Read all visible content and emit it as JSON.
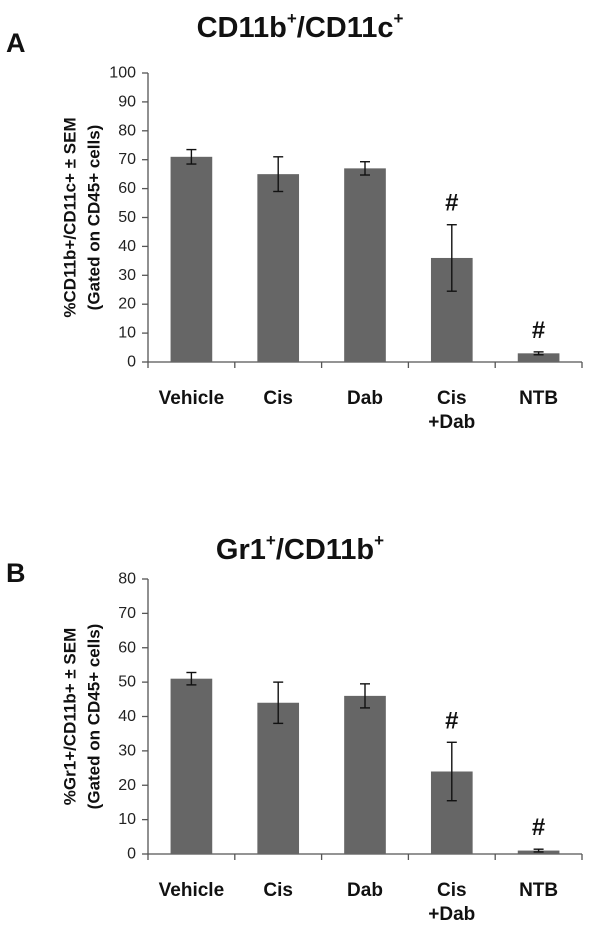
{
  "chart_data": [
    {
      "type": "bar",
      "panel_label": "A",
      "title_parts": [
        "CD11b",
        "+",
        "/CD11c",
        "+"
      ],
      "ylabel_lines": [
        "%CD11b+/CD11c+ ± SEM",
        "(Gated on CD45+ cells)"
      ],
      "categories": [
        [
          "Vehicle"
        ],
        [
          "Cis"
        ],
        [
          "Dab"
        ],
        [
          "Cis",
          "+Dab"
        ],
        [
          "NTB"
        ]
      ],
      "values": [
        71,
        65,
        67,
        36,
        3
      ],
      "errors": [
        2.5,
        6,
        2.3,
        11.5,
        0.5
      ],
      "significance": [
        "",
        "",
        "",
        "#",
        "#"
      ],
      "ylim": [
        0,
        100
      ],
      "yticks": [
        0,
        10,
        20,
        30,
        40,
        50,
        60,
        70,
        80,
        90,
        100
      ],
      "bar_color": "#666666",
      "grid": false
    },
    {
      "type": "bar",
      "panel_label": "B",
      "title_parts": [
        "Gr1",
        "+",
        "/CD11b",
        "+"
      ],
      "ylabel_lines": [
        "%Gr1+/CD11b+ ± SEM",
        "(Gated on CD45+ cells)"
      ],
      "categories": [
        [
          "Vehicle"
        ],
        [
          "Cis"
        ],
        [
          "Dab"
        ],
        [
          "Cis",
          "+Dab"
        ],
        [
          "NTB"
        ]
      ],
      "values": [
        51,
        44,
        46,
        24,
        1
      ],
      "errors": [
        1.8,
        6,
        3.5,
        8.5,
        0.4
      ],
      "significance": [
        "",
        "",
        "",
        "#",
        "#"
      ],
      "ylim": [
        0,
        80
      ],
      "yticks": [
        0,
        10,
        20,
        30,
        40,
        50,
        60,
        70,
        80
      ],
      "bar_color": "#666666",
      "grid": false
    }
  ]
}
